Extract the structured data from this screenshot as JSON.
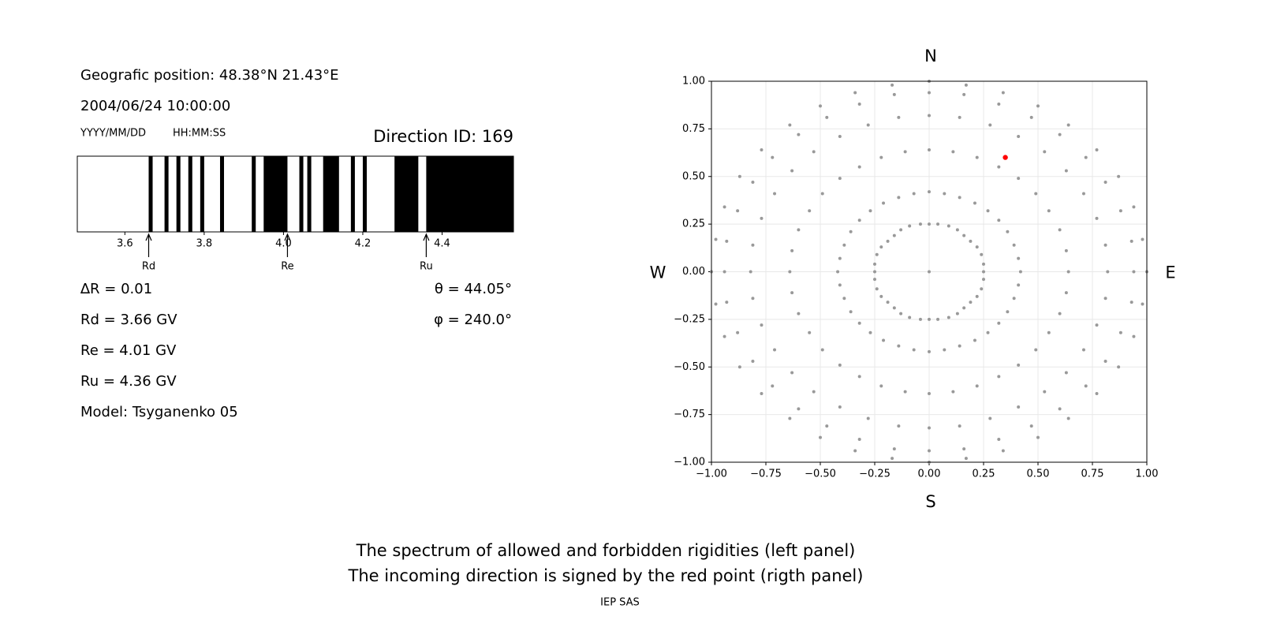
{
  "header": {
    "position": "Geografic position: 48.38°N 21.43°E",
    "datetime": "2004/06/24 10:00:00",
    "date_format": "YYYY/MM/DD",
    "time_format": "HH:MM:SS",
    "direction_id": "Direction ID: 169"
  },
  "parameters": {
    "delta_r": "∆R = 0.01",
    "rd": "Rd = 3.66 GV",
    "re": "Re = 4.01 GV",
    "ru": "Ru = 4.36 GV",
    "model": "Model: Tsyganenko 05",
    "theta": "θ = 44.05°",
    "phi": "φ = 240.0°"
  },
  "chart_data": [
    {
      "type": "spectrum",
      "xlim": [
        3.48,
        4.58
      ],
      "xticks": [
        3.6,
        3.8,
        {
          "value": 4,
          "label": "4.0"
        },
        4.2,
        4.4
      ],
      "forbidden_color": "#000000",
      "forbidden": [
        [
          3.66,
          3.67
        ],
        [
          3.7,
          3.71
        ],
        [
          3.73,
          3.74
        ],
        [
          3.76,
          3.77
        ],
        [
          3.79,
          3.8
        ],
        [
          3.84,
          3.85
        ],
        [
          3.92,
          3.93
        ],
        [
          3.95,
          4.01
        ],
        [
          4.04,
          4.05
        ],
        [
          4.06,
          4.07
        ],
        [
          4.1,
          4.14
        ],
        [
          4.17,
          4.18
        ],
        [
          4.2,
          4.21
        ],
        [
          4.28,
          4.34
        ],
        [
          4.36,
          4.58
        ]
      ],
      "markers": [
        {
          "label": "Rd",
          "value": 3.66
        },
        {
          "label": "Re",
          "value": 4.01
        },
        {
          "label": "Ru",
          "value": 4.36
        }
      ]
    },
    {
      "type": "scatter",
      "xlim": [
        -1,
        1
      ],
      "ylim": [
        -1,
        1
      ],
      "grid": true,
      "xticks": [
        {
          "value": -1,
          "label": "−1.00"
        },
        {
          "value": -0.75,
          "label": "−0.75"
        },
        {
          "value": -0.5,
          "label": "−0.50"
        },
        {
          "value": -0.25,
          "label": "−0.25"
        },
        {
          "value": 0,
          "label": "0.00"
        },
        0.25,
        {
          "value": 0.5,
          "label": "0.50"
        },
        0.75,
        {
          "value": 1,
          "label": "1.00"
        }
      ],
      "yticks": [
        {
          "value": -1,
          "label": "−1.00"
        },
        {
          "value": -0.75,
          "label": "−0.75"
        },
        {
          "value": -0.5,
          "label": "−0.50"
        },
        {
          "value": -0.25,
          "label": "−0.25"
        },
        {
          "value": 0,
          "label": "0.00"
        },
        0.25,
        {
          "value": 0.5,
          "label": "0.50"
        },
        0.75,
        {
          "value": 1,
          "label": "1.00"
        }
      ],
      "directions": {
        "top": "N",
        "bottom": "S",
        "left": "W",
        "right": "E"
      },
      "series": [
        {
          "color": "#999999",
          "x": [
            0
          ],
          "y": [
            0
          ]
        },
        {
          "color": "#999999",
          "x": [
            0,
            0.04,
            0.09,
            0.13,
            0.16,
            0.19,
            0.22,
            0.24,
            0.25,
            0.25,
            0.25,
            0.24,
            0.22,
            0.19,
            0.16,
            0.13,
            0.09,
            0.04,
            0,
            -0.04,
            -0.09,
            -0.13,
            -0.16,
            -0.19,
            -0.22,
            -0.24,
            -0.25,
            -0.25,
            -0.25,
            -0.24,
            -0.22,
            -0.19,
            -0.16,
            -0.13,
            -0.09,
            -0.04
          ],
          "y": [
            0.25,
            0.25,
            0.24,
            0.22,
            0.19,
            0.16,
            0.13,
            0.09,
            0.04,
            0,
            -0.04,
            -0.09,
            -0.13,
            -0.16,
            -0.19,
            -0.22,
            -0.24,
            -0.25,
            -0.25,
            -0.25,
            -0.24,
            -0.22,
            -0.19,
            -0.16,
            -0.13,
            -0.09,
            -0.04,
            0,
            0.04,
            0.09,
            0.13,
            0.16,
            0.19,
            0.22,
            0.24,
            0.25
          ]
        },
        {
          "color": "#999999",
          "x": [
            0,
            0.07,
            0.14,
            0.21,
            0.27,
            0.32,
            0.36,
            0.39,
            0.41,
            0.42,
            0.41,
            0.39,
            0.36,
            0.32,
            0.27,
            0.21,
            0.14,
            0.07,
            0,
            -0.07,
            -0.14,
            -0.21,
            -0.27,
            -0.32,
            -0.36,
            -0.39,
            -0.41,
            -0.42,
            -0.41,
            -0.39,
            -0.36,
            -0.32,
            -0.27,
            -0.21,
            -0.14,
            -0.07
          ],
          "y": [
            0.42,
            0.41,
            0.39,
            0.36,
            0.32,
            0.27,
            0.21,
            0.14,
            0.07,
            0,
            -0.07,
            -0.14,
            -0.21,
            -0.27,
            -0.32,
            -0.36,
            -0.39,
            -0.41,
            -0.42,
            -0.41,
            -0.39,
            -0.36,
            -0.32,
            -0.27,
            -0.21,
            -0.14,
            -0.07,
            0,
            0.07,
            0.14,
            0.21,
            0.27,
            0.32,
            0.36,
            0.39,
            0.41
          ]
        },
        {
          "color": "#999999",
          "x": [
            0,
            0.11,
            0.22,
            0.32,
            0.41,
            0.49,
            0.55,
            0.6,
            0.63,
            0.64,
            0.63,
            0.6,
            0.55,
            0.49,
            0.41,
            0.32,
            0.22,
            0.11,
            0,
            -0.11,
            -0.22,
            -0.32,
            -0.41,
            -0.49,
            -0.55,
            -0.6,
            -0.63,
            -0.64,
            -0.63,
            -0.6,
            -0.55,
            -0.49,
            -0.41,
            -0.32,
            -0.22,
            -0.11
          ],
          "y": [
            0.64,
            0.63,
            0.6,
            0.55,
            0.49,
            0.41,
            0.32,
            0.22,
            0.11,
            0,
            -0.11,
            -0.22,
            -0.32,
            -0.41,
            -0.49,
            -0.55,
            -0.6,
            -0.63,
            -0.64,
            -0.63,
            -0.6,
            -0.55,
            -0.49,
            -0.41,
            -0.32,
            -0.22,
            -0.11,
            0,
            0.11,
            0.22,
            0.32,
            0.41,
            0.49,
            0.55,
            0.6,
            0.63
          ]
        },
        {
          "color": "#999999",
          "x": [
            0,
            0.14,
            0.28,
            0.41,
            0.53,
            0.63,
            0.71,
            0.77,
            0.81,
            0.82,
            0.81,
            0.77,
            0.71,
            0.63,
            0.53,
            0.41,
            0.28,
            0.14,
            0,
            -0.14,
            -0.28,
            -0.41,
            -0.53,
            -0.63,
            -0.71,
            -0.77,
            -0.81,
            -0.82,
            -0.81,
            -0.77,
            -0.71,
            -0.63,
            -0.53,
            -0.41,
            -0.28,
            -0.14
          ],
          "y": [
            0.82,
            0.81,
            0.77,
            0.71,
            0.63,
            0.53,
            0.41,
            0.28,
            0.14,
            0,
            -0.14,
            -0.28,
            -0.41,
            -0.53,
            -0.63,
            -0.71,
            -0.77,
            -0.81,
            -0.82,
            -0.81,
            -0.77,
            -0.71,
            -0.63,
            -0.53,
            -0.41,
            -0.28,
            -0.14,
            0,
            0.14,
            0.28,
            0.41,
            0.53,
            0.63,
            0.71,
            0.77,
            0.81
          ]
        },
        {
          "color": "#999999",
          "x": [
            0,
            0.16,
            0.32,
            0.47,
            0.6,
            0.72,
            0.81,
            0.88,
            0.93,
            0.94,
            0.93,
            0.88,
            0.81,
            0.72,
            0.6,
            0.47,
            0.32,
            0.16,
            0,
            -0.16,
            -0.32,
            -0.47,
            -0.6,
            -0.72,
            -0.81,
            -0.88,
            -0.93,
            -0.94,
            -0.93,
            -0.88,
            -0.81,
            -0.72,
            -0.6,
            -0.47,
            -0.32,
            -0.16
          ],
          "y": [
            0.94,
            0.93,
            0.88,
            0.81,
            0.72,
            0.6,
            0.47,
            0.32,
            0.16,
            0,
            -0.16,
            -0.32,
            -0.47,
            -0.6,
            -0.72,
            -0.81,
            -0.88,
            -0.93,
            -0.94,
            -0.93,
            -0.88,
            -0.81,
            -0.72,
            -0.6,
            -0.47,
            -0.32,
            -0.16,
            0,
            0.16,
            0.32,
            0.47,
            0.6,
            0.72,
            0.81,
            0.88,
            0.93
          ]
        },
        {
          "color": "#999999",
          "x": [
            0,
            0.17,
            0.34,
            0.5,
            0.64,
            0.77,
            0.87,
            0.94,
            0.98,
            1,
            0.98,
            0.94,
            0.87,
            0.77,
            0.64,
            0.5,
            0.34,
            0.17,
            0,
            -0.17,
            -0.34,
            -0.5,
            -0.64,
            -0.77,
            -0.87,
            -0.94,
            -0.98,
            -1,
            -0.98,
            -0.94,
            -0.87,
            -0.77,
            -0.64,
            -0.5,
            -0.34,
            -0.17
          ],
          "y": [
            1,
            0.98,
            0.94,
            0.87,
            0.77,
            0.64,
            0.5,
            0.34,
            0.17,
            0,
            -0.17,
            -0.34,
            -0.5,
            -0.64,
            -0.77,
            -0.87,
            -0.94,
            -0.98,
            -1,
            -0.98,
            -0.94,
            -0.87,
            -0.77,
            -0.64,
            -0.5,
            -0.34,
            -0.17,
            0,
            0.17,
            0.34,
            0.5,
            0.64,
            0.77,
            0.87,
            0.94,
            0.98
          ]
        },
        {
          "color": "#ff0000",
          "x": [
            0.35
          ],
          "y": [
            0.6
          ]
        }
      ]
    }
  ],
  "caption": [
    "The spectrum of allowed and forbidden rigidities (left panel)",
    "The incoming direction is signed by the red point (rigth panel)"
  ],
  "footer": "IEP SAS"
}
